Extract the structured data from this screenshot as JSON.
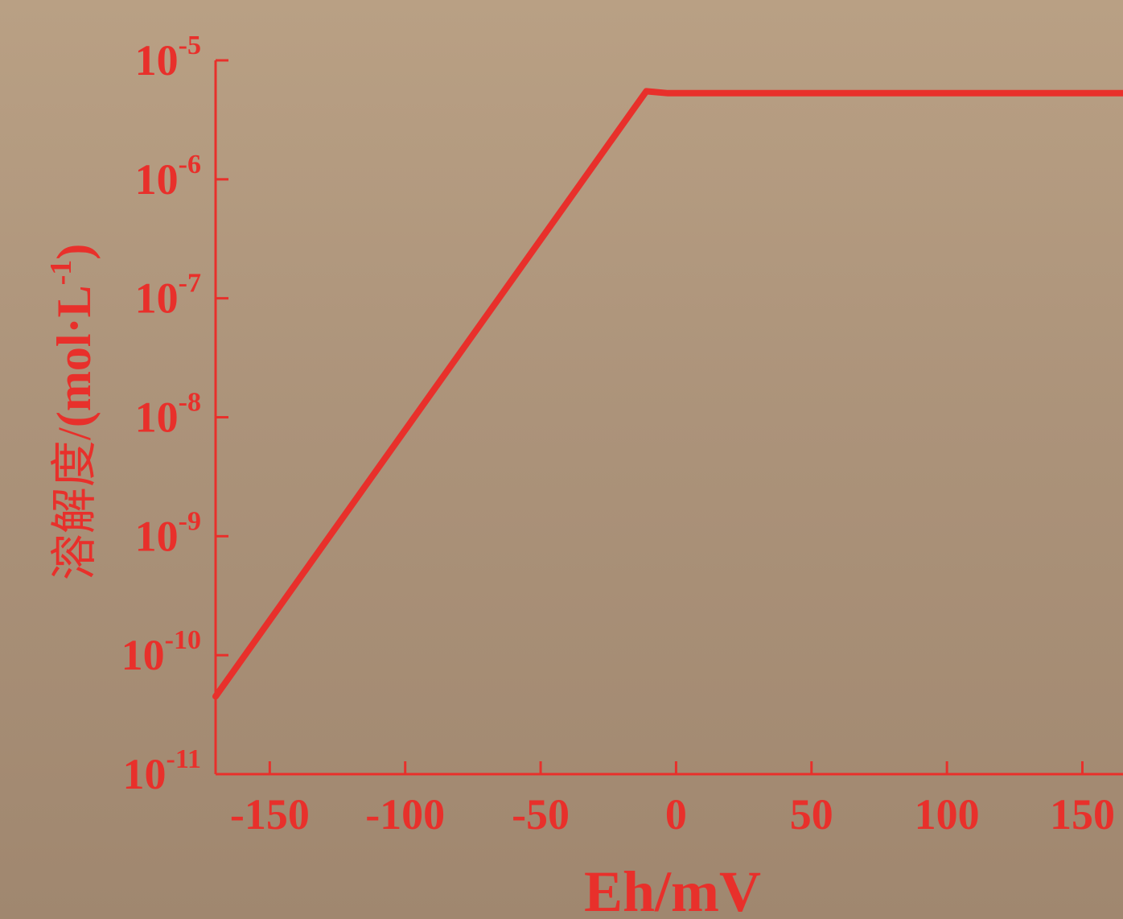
{
  "colors": {
    "accent": "#e8302b"
  },
  "chart_data": {
    "type": "line",
    "title": "",
    "xlabel": "Eh/mV",
    "ylabel_cn": "溶解度/",
    "ylabel_unit": "(mol·L",
    "ylabel_exp": "-1",
    "ylabel_close": ")",
    "y_scale": "log",
    "xlim": [
      -170,
      165
    ],
    "ylim": [
      1e-11,
      1e-05
    ],
    "x_ticks": [
      {
        "value": -150,
        "label": "-150"
      },
      {
        "value": -100,
        "label": "-100"
      },
      {
        "value": -50,
        "label": "-50"
      },
      {
        "value": 0,
        "label": "0"
      },
      {
        "value": 50,
        "label": "50"
      },
      {
        "value": 100,
        "label": "100"
      },
      {
        "value": 150,
        "label": "150"
      }
    ],
    "y_ticks": [
      {
        "value": 1e-05,
        "base": "10",
        "exp": "-5"
      },
      {
        "value": 1e-06,
        "base": "10",
        "exp": "-6"
      },
      {
        "value": 1e-07,
        "base": "10",
        "exp": "-7"
      },
      {
        "value": 1e-08,
        "base": "10",
        "exp": "-8"
      },
      {
        "value": 1e-09,
        "base": "10",
        "exp": "-9"
      },
      {
        "value": 1e-10,
        "base": "10",
        "exp": "-10"
      },
      {
        "value": 1e-11,
        "base": "10",
        "exp": "-11"
      }
    ],
    "grid": false,
    "series": [
      {
        "x": [
          -170,
          -11,
          -3,
          0,
          50,
          100,
          150,
          170
        ],
        "y": [
          4.5e-11,
          5.5e-06,
          5.3e-06,
          5.3e-06,
          5.3e-06,
          5.3e-06,
          5.3e-06,
          5.3e-06
        ]
      }
    ]
  }
}
